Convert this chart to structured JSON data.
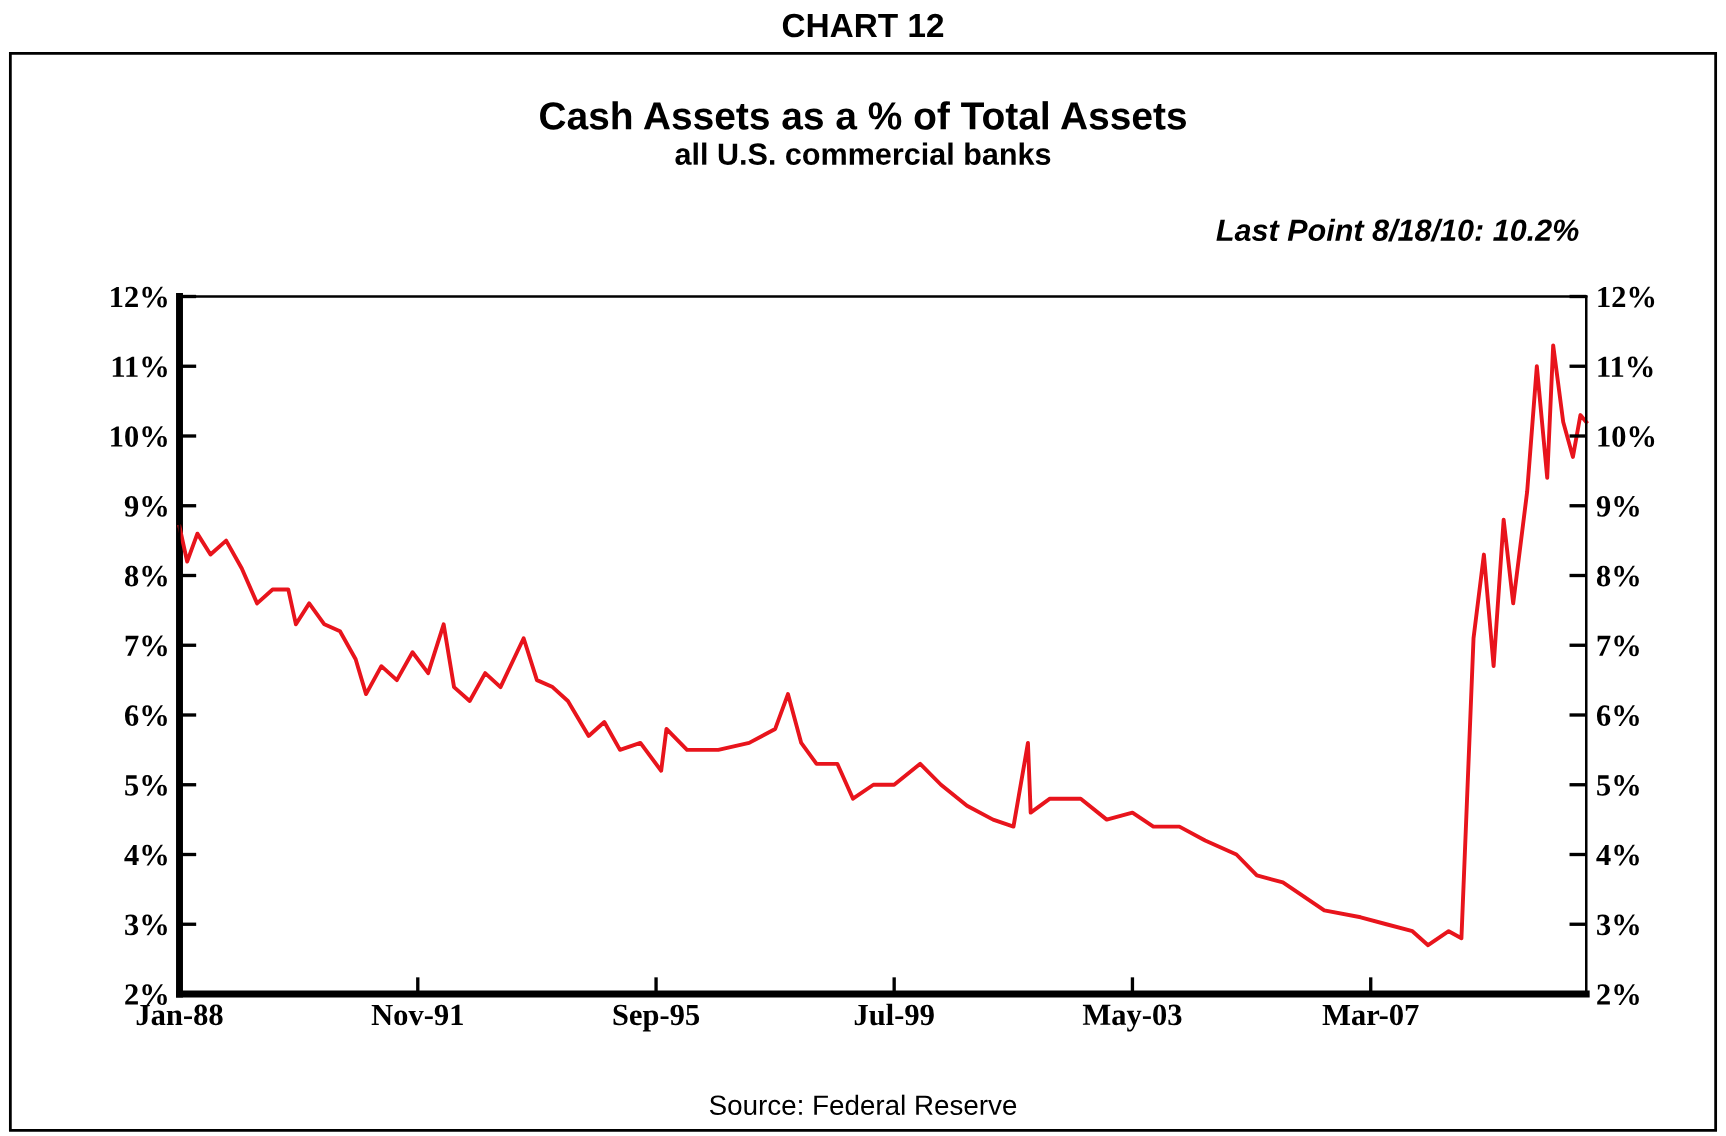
{
  "chart_data": {
    "type": "line",
    "title": "Cash Assets as a % of Total Assets",
    "subtitle": "all U.S. commercial banks",
    "annotations": [
      "CHART 12",
      "Last Point 8/18/10: 10.2%",
      "Source: Federal Reserve"
    ],
    "x": [
      "1988-01-01",
      "1988-02-15",
      "1988-04-15",
      "1988-07-01",
      "1988-10-01",
      "1989-01-01",
      "1989-04-01",
      "1989-07-01",
      "1989-10-01",
      "1989-11-15",
      "1990-02-01",
      "1990-05-01",
      "1990-08-01",
      "1990-11-01",
      "1991-01-01",
      "1991-04-01",
      "1991-07-01",
      "1991-10-01",
      "1992-01-01",
      "1992-04-01",
      "1992-06-01",
      "1992-09-01",
      "1992-12-01",
      "1993-03-01",
      "1993-07-15",
      "1993-10-01",
      "1994-01-01",
      "1994-04-01",
      "1994-08-01",
      "1994-11-01",
      "1995-02-01",
      "1995-06-01",
      "1995-10-01",
      "1995-11-01",
      "1996-03-01",
      "1996-09-01",
      "1997-03-01",
      "1997-08-01",
      "1997-10-15",
      "1998-01-01",
      "1998-04-01",
      "1998-08-01",
      "1998-11-01",
      "1999-03-01",
      "1999-07-01",
      "1999-12-01",
      "2000-04-01",
      "2000-09-01",
      "2001-02-01",
      "2001-06-01",
      "2001-08-25",
      "2001-09-10",
      "2002-01-01",
      "2002-07-01",
      "2002-12-01",
      "2003-05-01",
      "2003-09-01",
      "2004-02-01",
      "2004-07-01",
      "2005-01-01",
      "2005-05-01",
      "2005-10-01",
      "2006-06-01",
      "2007-01-01",
      "2007-06-01",
      "2007-11-01",
      "2008-02-01",
      "2008-06-01",
      "2008-08-15",
      "2008-10-25",
      "2008-12-25",
      "2009-02-20",
      "2009-04-20",
      "2009-06-15",
      "2009-09-05",
      "2009-11-01",
      "2010-01-01",
      "2010-02-05",
      "2010-04-05",
      "2010-06-01",
      "2010-07-15",
      "2010-08-18"
    ],
    "series": [
      {
        "color": "#e8141c",
        "values": [
          8.7,
          8.2,
          8.6,
          8.3,
          8.5,
          8.1,
          7.6,
          7.8,
          7.8,
          7.3,
          7.6,
          7.3,
          7.2,
          6.8,
          6.3,
          6.7,
          6.5,
          6.9,
          6.6,
          7.3,
          6.4,
          6.2,
          6.6,
          6.4,
          7.1,
          6.5,
          6.4,
          6.2,
          5.7,
          5.9,
          5.5,
          5.6,
          5.2,
          5.8,
          5.5,
          5.5,
          5.6,
          5.8,
          6.3,
          5.6,
          5.3,
          5.3,
          4.8,
          5.0,
          5.0,
          5.3,
          5.0,
          4.7,
          4.5,
          4.4,
          5.6,
          4.6,
          4.8,
          4.8,
          4.5,
          4.6,
          4.4,
          4.4,
          4.2,
          4.0,
          3.7,
          3.6,
          3.2,
          3.1,
          3.0,
          2.9,
          2.7,
          2.9,
          2.8,
          7.1,
          8.3,
          6.7,
          8.8,
          7.6,
          9.2,
          11.0,
          9.4,
          11.3,
          10.2,
          9.7,
          10.3,
          10.2
        ]
      }
    ],
    "xlim": [
      "1988-01-01",
      "2010-08-18"
    ],
    "xticks": [
      {
        "value": "1988-01-01",
        "label": "Jan-88"
      },
      {
        "value": "1991-11-01",
        "label": "Nov-91"
      },
      {
        "value": "1995-09-01",
        "label": "Sep-95"
      },
      {
        "value": "1999-07-01",
        "label": "Jul-99"
      },
      {
        "value": "2003-05-01",
        "label": "May-03"
      },
      {
        "value": "2007-03-01",
        "label": "Mar-07"
      }
    ],
    "ylim": [
      2,
      12
    ],
    "yticks": [
      {
        "value": 2,
        "label": "2%"
      },
      {
        "value": 3,
        "label": "3%"
      },
      {
        "value": 4,
        "label": "4%"
      },
      {
        "value": 5,
        "label": "5%"
      },
      {
        "value": 6,
        "label": "6%"
      },
      {
        "value": 7,
        "label": "7%"
      },
      {
        "value": 8,
        "label": "8%"
      },
      {
        "value": 9,
        "label": "9%"
      },
      {
        "value": 10,
        "label": "10%"
      },
      {
        "value": 11,
        "label": "11%"
      },
      {
        "value": 12,
        "label": "12%"
      }
    ],
    "y2lim": [
      2,
      12
    ],
    "y2ticks": [
      {
        "value": 2,
        "label": "2%"
      },
      {
        "value": 3,
        "label": "3%"
      },
      {
        "value": 4,
        "label": "4%"
      },
      {
        "value": 5,
        "label": "5%"
      },
      {
        "value": 6,
        "label": "6%"
      },
      {
        "value": 7,
        "label": "7%"
      },
      {
        "value": 8,
        "label": "8%"
      },
      {
        "value": 9,
        "label": "9%"
      },
      {
        "value": 10,
        "label": "10%"
      },
      {
        "value": 11,
        "label": "11%"
      },
      {
        "value": 12,
        "label": "12%"
      }
    ],
    "line_style": "solid"
  }
}
